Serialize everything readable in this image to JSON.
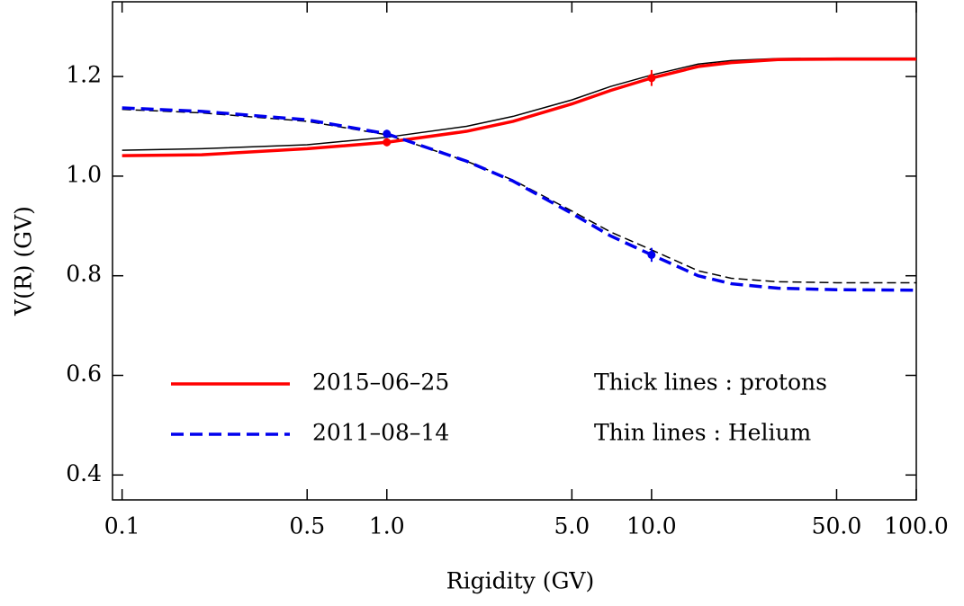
{
  "chart_data": {
    "type": "line",
    "xscale": "log",
    "xlabel": "Rigidity  (GV)",
    "ylabel": "V(R)    (GV)",
    "xlim": [
      0.092,
      100
    ],
    "ylim": [
      0.35,
      1.35
    ],
    "xticks": [
      0.1,
      0.5,
      {
        "value": 1,
        "label": "1.0"
      },
      {
        "value": 5,
        "label": "5.0"
      },
      {
        "value": 10,
        "label": "10.0"
      },
      {
        "value": 50,
        "label": "50.0"
      },
      {
        "value": 100,
        "label": "100.0"
      }
    ],
    "yticks": [
      0.4,
      0.6,
      0.8,
      {
        "value": 1,
        "label": "1.0"
      },
      1.2
    ],
    "x": [
      0.1,
      0.2,
      0.5,
      1,
      2,
      3,
      5,
      7,
      10,
      15,
      20,
      30,
      50,
      100
    ],
    "series": [
      {
        "color": "#000000",
        "width": 1.5,
        "dashed": false,
        "values": [
          1.052,
          1.055,
          1.063,
          1.078,
          1.1,
          1.12,
          1.153,
          1.18,
          1.203,
          1.225,
          1.232,
          1.236,
          1.237,
          1.237
        ]
      },
      {
        "color": "#000000",
        "width": 1.5,
        "dashed": true,
        "values": [
          1.134,
          1.127,
          1.11,
          1.083,
          1.03,
          0.992,
          0.93,
          0.888,
          0.852,
          0.81,
          0.795,
          0.788,
          0.786,
          0.786
        ]
      },
      {
        "name": "2015–06–25",
        "color": "#ff0000",
        "width": 3.5,
        "dashed": false,
        "values": [
          1.041,
          1.043,
          1.055,
          1.068,
          1.09,
          1.11,
          1.145,
          1.172,
          1.197,
          1.22,
          1.228,
          1.234,
          1.235,
          1.235
        ]
      },
      {
        "name": "2011–08–14",
        "color": "#0000ee",
        "width": 3.5,
        "dashed": true,
        "values": [
          1.137,
          1.13,
          1.113,
          1.085,
          1.03,
          0.99,
          0.925,
          0.88,
          0.842,
          0.8,
          0.784,
          0.775,
          0.772,
          0.771
        ]
      }
    ],
    "points": [
      {
        "color": "#ff0000",
        "x": [
          1,
          10
        ],
        "values": [
          1.068,
          1.197
        ],
        "errors": [
          0.008,
          0.016
        ]
      },
      {
        "color": "#0000ee",
        "x": [
          1,
          10
        ],
        "values": [
          1.085,
          0.842
        ],
        "errors": [
          0.008,
          0.014
        ]
      }
    ],
    "annotations": [
      "Thick lines : protons",
      "Thin lines : Helium"
    ]
  }
}
